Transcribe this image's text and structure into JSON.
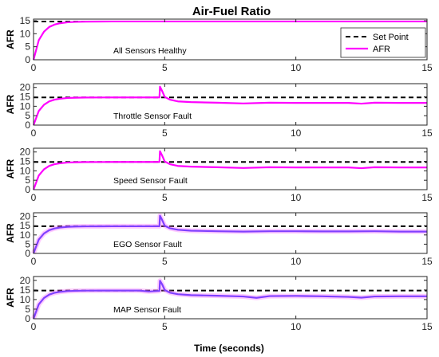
{
  "figure": {
    "title": "Air-Fuel Ratio",
    "xlabel": "Time (seconds)",
    "legend": {
      "position": "top-right",
      "entries": [
        "Set Point",
        "AFR"
      ]
    }
  },
  "chart_data": [
    {
      "type": "line",
      "annotation": "All Sensors Healthy",
      "ylabel": "AFR",
      "xlim": [
        0,
        15
      ],
      "ylim": [
        0,
        15.6
      ],
      "yticks": [
        0,
        5,
        10,
        15
      ],
      "xticks": [
        0,
        5,
        10,
        15
      ],
      "series": [
        {
          "name": "Set Point",
          "style": "dashed",
          "color": "#000000",
          "x": [
            0,
            15
          ],
          "y": [
            14.7,
            14.7
          ]
        },
        {
          "name": "AFR",
          "style": "solid",
          "color": "#ff00ff",
          "band": false,
          "x": [
            0,
            0.2,
            0.4,
            0.6,
            0.8,
            1.0,
            1.3,
            1.6,
            2.0,
            3.0,
            4.8,
            5.0,
            6.0,
            15
          ],
          "y": [
            0,
            7.5,
            10.8,
            12.6,
            13.5,
            14.0,
            14.4,
            14.55,
            14.65,
            14.7,
            14.7,
            14.7,
            14.7,
            14.7
          ]
        }
      ]
    },
    {
      "type": "line",
      "annotation": "Throttle Sensor Fault",
      "ylabel": "AFR",
      "xlim": [
        0,
        15
      ],
      "ylim": [
        0,
        22
      ],
      "yticks": [
        0,
        5,
        10,
        15,
        20
      ],
      "xticks": [
        0,
        5,
        10,
        15
      ],
      "series": [
        {
          "name": "Set Point",
          "style": "dashed",
          "color": "#000000",
          "x": [
            0,
            15
          ],
          "y": [
            14.7,
            14.7
          ]
        },
        {
          "name": "AFR",
          "style": "solid",
          "color": "#ff00ff",
          "band": false,
          "x": [
            0,
            0.2,
            0.4,
            0.6,
            0.8,
            1.0,
            1.3,
            1.6,
            2.0,
            3.0,
            4.8,
            4.82,
            4.9,
            5.0,
            5.2,
            5.5,
            6.0,
            7.0,
            8.0,
            9.0,
            10.0,
            11.0,
            12.0,
            12.5,
            13.0,
            14.0,
            15
          ],
          "y": [
            0,
            7.5,
            10.8,
            12.6,
            13.5,
            14.0,
            14.4,
            14.55,
            14.65,
            14.7,
            14.7,
            20.4,
            18.2,
            15.0,
            13.5,
            12.6,
            12.2,
            11.9,
            11.5,
            11.9,
            11.8,
            11.8,
            11.8,
            11.4,
            11.9,
            11.8,
            11.8
          ]
        }
      ]
    },
    {
      "type": "line",
      "annotation": "Speed Sensor Fault",
      "ylabel": "AFR",
      "xlim": [
        0,
        15
      ],
      "ylim": [
        0,
        22
      ],
      "yticks": [
        0,
        5,
        10,
        15,
        20
      ],
      "xticks": [
        0,
        5,
        10,
        15
      ],
      "series": [
        {
          "name": "Set Point",
          "style": "dashed",
          "color": "#000000",
          "x": [
            0,
            15
          ],
          "y": [
            14.7,
            14.7
          ]
        },
        {
          "name": "AFR",
          "style": "solid",
          "color": "#ff00ff",
          "band": false,
          "x": [
            0,
            0.2,
            0.4,
            0.6,
            0.8,
            1.0,
            1.3,
            1.6,
            2.0,
            3.0,
            4.8,
            4.82,
            4.9,
            5.0,
            5.2,
            5.5,
            6.0,
            7.0,
            8.0,
            9.0,
            10.0,
            11.0,
            12.0,
            12.5,
            13.0,
            14.0,
            15
          ],
          "y": [
            0,
            7.5,
            10.8,
            12.6,
            13.5,
            14.0,
            14.4,
            14.55,
            14.65,
            14.7,
            14.7,
            20.4,
            18.2,
            15.0,
            13.5,
            12.6,
            12.2,
            11.9,
            11.5,
            11.9,
            11.8,
            11.8,
            11.8,
            11.4,
            11.9,
            11.8,
            11.8
          ]
        }
      ]
    },
    {
      "type": "line",
      "annotation": "EGO Sensor Fault",
      "ylabel": "AFR",
      "xlim": [
        0,
        15
      ],
      "ylim": [
        0,
        22
      ],
      "yticks": [
        0,
        5,
        10,
        15,
        20
      ],
      "xticks": [
        0,
        5,
        10,
        15
      ],
      "series": [
        {
          "name": "Set Point",
          "style": "dashed",
          "color": "#000000",
          "x": [
            0,
            15
          ],
          "y": [
            14.7,
            14.7
          ]
        },
        {
          "name": "AFR",
          "style": "solid",
          "color": "#8040ff",
          "band": true,
          "x": [
            0,
            0.2,
            0.4,
            0.6,
            0.8,
            1.0,
            1.3,
            1.6,
            2.0,
            3.0,
            4.8,
            4.82,
            4.9,
            5.0,
            5.2,
            5.5,
            6.0,
            7.0,
            8.0,
            9.0,
            10.0,
            11.0,
            12.0,
            13.0,
            14.0,
            15
          ],
          "y": [
            0,
            7.5,
            10.8,
            12.6,
            13.5,
            14.0,
            14.4,
            14.55,
            14.65,
            14.7,
            14.7,
            20.4,
            18.2,
            15.0,
            13.6,
            12.8,
            12.3,
            12.0,
            11.8,
            12.0,
            12.0,
            11.9,
            11.9,
            12.0,
            11.8,
            11.8
          ]
        }
      ]
    },
    {
      "type": "line",
      "annotation": "MAP Sensor Fault",
      "ylabel": "AFR",
      "xlim": [
        0,
        15
      ],
      "ylim": [
        0,
        22
      ],
      "yticks": [
        0,
        5,
        10,
        15,
        20
      ],
      "xticks": [
        0,
        5,
        10,
        15
      ],
      "series": [
        {
          "name": "Set Point",
          "style": "dashed",
          "color": "#000000",
          "x": [
            0,
            15
          ],
          "y": [
            14.7,
            14.7
          ]
        },
        {
          "name": "AFR",
          "style": "solid",
          "color": "#8040ff",
          "band": true,
          "x": [
            0,
            0.2,
            0.4,
            0.6,
            0.8,
            1.0,
            1.3,
            1.6,
            2.0,
            3.0,
            4.0,
            4.4,
            4.8,
            4.82,
            4.9,
            5.0,
            5.2,
            5.5,
            6.0,
            7.0,
            8.0,
            8.5,
            9.0,
            10.0,
            11.0,
            12.0,
            12.5,
            13.0,
            14.0,
            15
          ],
          "y": [
            0,
            7.5,
            10.8,
            12.6,
            13.5,
            14.0,
            14.4,
            14.55,
            14.65,
            14.7,
            14.7,
            14.2,
            14.5,
            19.8,
            18.0,
            15.0,
            13.6,
            12.8,
            12.3,
            12.0,
            11.6,
            10.9,
            11.8,
            11.9,
            11.7,
            11.4,
            11.0,
            11.6,
            11.7,
            11.7
          ]
        }
      ]
    }
  ]
}
